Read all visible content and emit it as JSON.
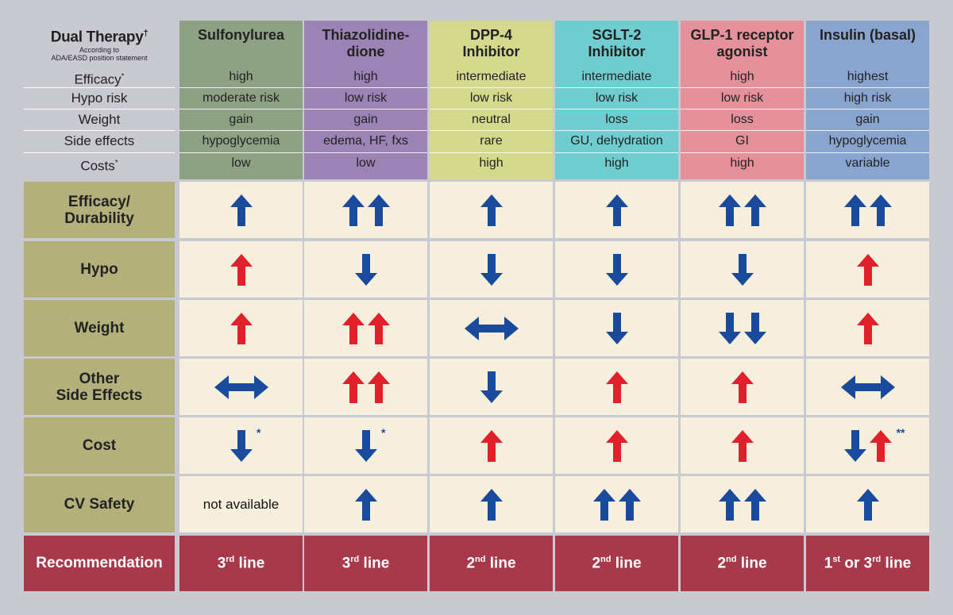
{
  "header": {
    "title": "Dual Therapy",
    "title_mark": "†",
    "subtitle_line1": "According to",
    "subtitle_line2": "ADA/EASD position statement",
    "row_labels": [
      {
        "text": "Efficacy",
        "mark": "*"
      },
      {
        "text": "Hypo risk",
        "mark": ""
      },
      {
        "text": "Weight",
        "mark": ""
      },
      {
        "text": "Side effects",
        "mark": ""
      },
      {
        "text": "Costs",
        "mark": "*"
      }
    ]
  },
  "drugs": [
    {
      "name_line1": "Sulfonylurea",
      "name_line2": "",
      "color": "#8fa184",
      "values": [
        "high",
        "moderate risk",
        "gain",
        "hypoglycemia",
        "low"
      ]
    },
    {
      "name_line1": "Thiazolidine-",
      "name_line2": "dione",
      "color": "#9b83b5",
      "values": [
        "high",
        "low risk",
        "gain",
        "edema, HF, fxs",
        "low"
      ]
    },
    {
      "name_line1": "DPP-4",
      "name_line2": "Inhibitor",
      "color": "#d5d98d",
      "values": [
        "intermediate",
        "low risk",
        "neutral",
        "rare",
        "high"
      ]
    },
    {
      "name_line1": "SGLT-2",
      "name_line2": "Inhibitor",
      "color": "#6fcdd0",
      "values": [
        "intermediate",
        "low risk",
        "loss",
        "GU, dehydration",
        "high"
      ]
    },
    {
      "name_line1": "GLP-1 receptor",
      "name_line2": "agonist",
      "color": "#e4919c",
      "values": [
        "high",
        "low risk",
        "loss",
        "GI",
        "high"
      ]
    },
    {
      "name_line1": "Insulin (basal)",
      "name_line2": "",
      "color": "#89a4cf",
      "values": [
        "highest",
        "high risk",
        "gain",
        "hypoglycemia",
        "variable"
      ]
    }
  ],
  "metrics": [
    {
      "label_line1": "Efficacy/",
      "label_line2": "Durability",
      "cells": [
        [
          "up-blue"
        ],
        [
          "up-blue",
          "up-blue"
        ],
        [
          "up-blue"
        ],
        [
          "up-blue"
        ],
        [
          "up-blue",
          "up-blue"
        ],
        [
          "up-blue",
          "up-blue"
        ]
      ],
      "stars": [
        "",
        "",
        "",
        "",
        "",
        ""
      ]
    },
    {
      "label_line1": "Hypo",
      "label_line2": "",
      "cells": [
        [
          "up-red"
        ],
        [
          "down-blue"
        ],
        [
          "down-blue"
        ],
        [
          "down-blue"
        ],
        [
          "down-blue"
        ],
        [
          "up-red"
        ]
      ],
      "stars": [
        "",
        "",
        "",
        "",
        "",
        ""
      ]
    },
    {
      "label_line1": "Weight",
      "label_line2": "",
      "cells": [
        [
          "up-red"
        ],
        [
          "up-red",
          "up-red"
        ],
        [
          "lr-blue"
        ],
        [
          "down-blue"
        ],
        [
          "down-blue",
          "down-blue"
        ],
        [
          "up-red"
        ]
      ],
      "stars": [
        "",
        "",
        "",
        "",
        "",
        ""
      ]
    },
    {
      "label_line1": "Other",
      "label_line2": "Side Effects",
      "cells": [
        [
          "lr-blue"
        ],
        [
          "up-red",
          "up-red"
        ],
        [
          "down-blue"
        ],
        [
          "up-red"
        ],
        [
          "up-red"
        ],
        [
          "lr-blue"
        ]
      ],
      "stars": [
        "",
        "",
        "",
        "",
        "",
        ""
      ]
    },
    {
      "label_line1": "Cost",
      "label_line2": "",
      "cells": [
        [
          "down-blue"
        ],
        [
          "down-blue"
        ],
        [
          "up-red"
        ],
        [
          "up-red"
        ],
        [
          "up-red"
        ],
        [
          "down-blue",
          "up-red"
        ]
      ],
      "stars": [
        "*",
        "*",
        "",
        "",
        "",
        "**"
      ]
    },
    {
      "label_line1": "CV Safety",
      "label_line2": "",
      "cells": [
        [
          "text"
        ],
        [
          "up-blue"
        ],
        [
          "up-blue"
        ],
        [
          "up-blue",
          "up-blue"
        ],
        [
          "up-blue",
          "up-blue"
        ],
        [
          "up-blue"
        ]
      ],
      "texts": [
        "not available",
        "",
        "",
        "",
        "",
        ""
      ],
      "stars": [
        "",
        "",
        "",
        "",
        "",
        ""
      ]
    }
  ],
  "recommendation": {
    "label": "Recommendation",
    "cells": [
      {
        "num": "3",
        "sup": "rd",
        "rest": " line",
        "num2": "",
        "sup2": "",
        "rest2": ""
      },
      {
        "num": "3",
        "sup": "rd",
        "rest": " line",
        "num2": "",
        "sup2": "",
        "rest2": ""
      },
      {
        "num": "2",
        "sup": "nd",
        "rest": " line",
        "num2": "",
        "sup2": "",
        "rest2": ""
      },
      {
        "num": "2",
        "sup": "nd",
        "rest": " line",
        "num2": "",
        "sup2": "",
        "rest2": ""
      },
      {
        "num": "2",
        "sup": "nd",
        "rest": " line",
        "num2": "",
        "sup2": "",
        "rest2": ""
      },
      {
        "num": "1",
        "sup": "st",
        "rest": " or ",
        "num2": "3",
        "sup2": "rd",
        "rest2": " line"
      }
    ]
  },
  "colors": {
    "arrow_blue": "#1a4a9c",
    "arrow_red": "#e0202a",
    "label_bg": "#b3b07c",
    "cell_bg": "#f6efdd",
    "rec_bg": "#a8394b"
  }
}
